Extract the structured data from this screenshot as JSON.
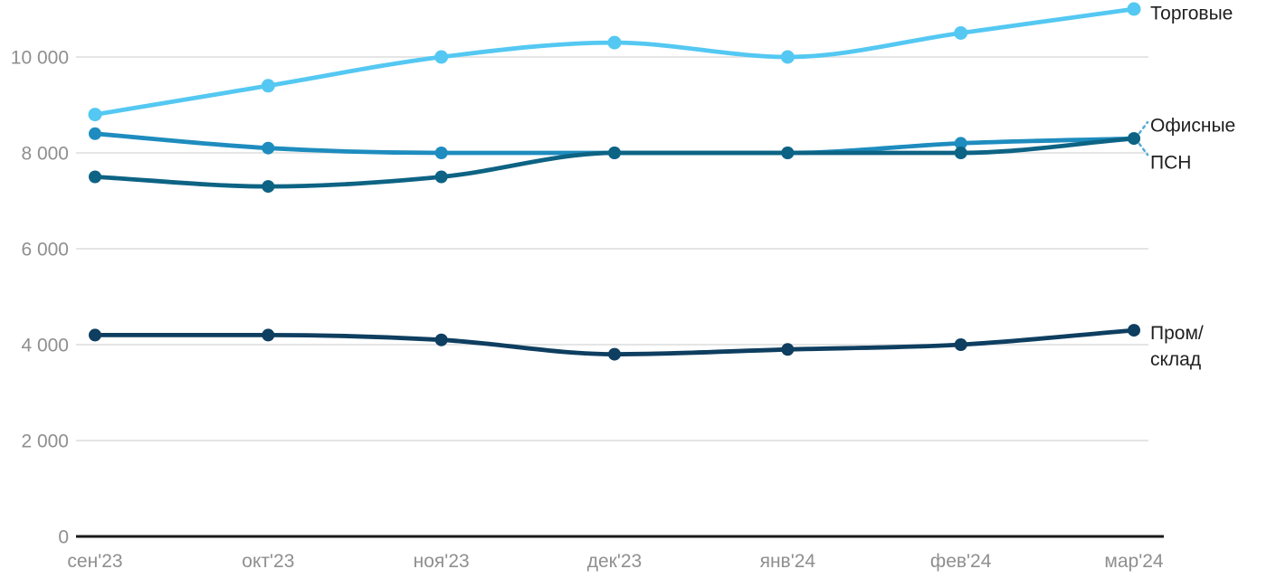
{
  "chart_data": {
    "type": "line",
    "title": "",
    "xlabel": "",
    "ylabel": "",
    "categories": [
      "сен'23",
      "окт'23",
      "ноя'23",
      "дек'23",
      "янв'24",
      "фев'24",
      "мар'24"
    ],
    "series": [
      {
        "name": "Торговые",
        "color": "#54C8F2",
        "values": [
          8800,
          9400,
          10000,
          10300,
          10000,
          10500,
          11000
        ]
      },
      {
        "name": "Офисные",
        "color": "#1E8CBE",
        "values": [
          8400,
          8100,
          8000,
          8000,
          8000,
          8200,
          8300
        ]
      },
      {
        "name": "ПСН",
        "color": "#0D6384",
        "values": [
          7500,
          7300,
          7500,
          8000,
          8000,
          8000,
          8300
        ]
      },
      {
        "name": "Пром/склад",
        "color": "#0E3E60",
        "values": [
          4200,
          4200,
          4100,
          3800,
          3900,
          4000,
          4300
        ]
      }
    ],
    "y_ticks": [
      0,
      2000,
      4000,
      6000,
      8000,
      10000
    ],
    "y_tick_labels": [
      "0",
      "2 000",
      "4 000",
      "6 000",
      "8 000",
      "10 000"
    ],
    "ylim": [
      0,
      11200
    ],
    "grid": "horizontal",
    "legend_position": "right-end-labels",
    "annotations": [
      {
        "text": "Торговые",
        "series_index": 0,
        "dy": 5,
        "leader": null
      },
      {
        "text": "Офисные",
        "series_index": 1,
        "dy": -14,
        "leader": "up"
      },
      {
        "text": "ПСН",
        "series_index": 2,
        "dy": 27,
        "leader": "down"
      },
      {
        "text": "Пром/\nсклад",
        "series_index": 3,
        "dy": 18,
        "leader": null
      }
    ],
    "colors": {
      "axis": "#1a1a1a",
      "grid": "#e5e5e5",
      "tick_text": "#8f8f8f",
      "label_text": "#1f1f1f",
      "leader": "#54acd6",
      "background": "#ffffff"
    }
  }
}
